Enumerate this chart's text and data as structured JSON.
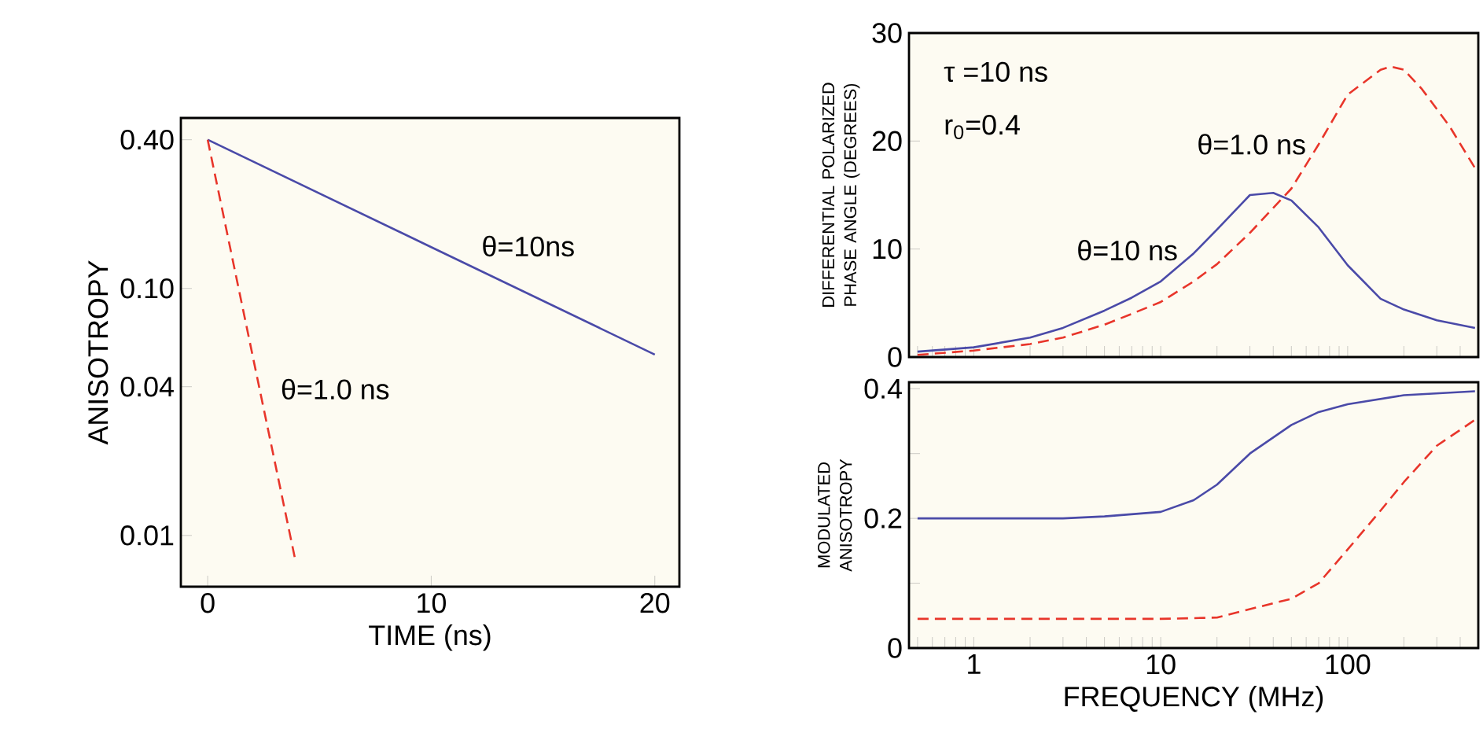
{
  "chart_data": [
    {
      "type": "line",
      "xlabel": "TIME (ns)",
      "ylabel": "ANISOTROPY",
      "log": "y",
      "xlim": [
        -1.2,
        21.1
      ],
      "ylim": [
        0.0062,
        0.49
      ],
      "xticks": [
        0,
        10,
        20
      ],
      "yticks": [
        {
          "value": 0.4,
          "label": "0.40"
        },
        {
          "value": 0.1,
          "label": "0.10"
        },
        0.04,
        0.01
      ],
      "series": [
        {
          "name": "θ=10ns",
          "color": "#4a4aa8",
          "line_style": "solid",
          "x": [
            0,
            10,
            20
          ],
          "values": [
            0.4,
            0.147,
            0.054
          ]
        },
        {
          "name": "θ=1.0 ns",
          "color": "#e8352a",
          "line_style": "dashed",
          "x": [
            0,
            2,
            3.9
          ],
          "values": [
            0.4,
            0.054,
            0.0081
          ]
        }
      ]
    },
    {
      "type": "line",
      "ylabel": "DIFFERENTIAL POLARIZED PHASE ANGLE (DEGREES)",
      "log": "x",
      "tick_labels": "y",
      "annotations": [
        "τ =10 ns",
        "r$_{0}$=0.4"
      ],
      "xlim": [
        0.45,
        500
      ],
      "ylim": [
        0,
        30
      ],
      "yticks": [
        0,
        10,
        20,
        30
      ],
      "xticks": [
        {
          "value": 0.5,
          "label": null
        },
        {
          "value": 0.6,
          "label": null
        },
        {
          "value": 0.7,
          "label": null
        },
        {
          "value": 0.8,
          "label": null
        },
        {
          "value": 0.9,
          "label": null
        },
        1,
        {
          "value": 2,
          "label": null
        },
        {
          "value": 3,
          "label": null
        },
        {
          "value": 4,
          "label": null
        },
        {
          "value": 5,
          "label": null
        },
        {
          "value": 6,
          "label": null
        },
        {
          "value": 7,
          "label": null
        },
        {
          "value": 8,
          "label": null
        },
        {
          "value": 9,
          "label": null
        },
        10,
        {
          "value": 20,
          "label": null
        },
        {
          "value": 30,
          "label": null
        },
        {
          "value": 40,
          "label": null
        },
        {
          "value": 50,
          "label": null
        },
        {
          "value": 60,
          "label": null
        },
        {
          "value": 70,
          "label": null
        },
        {
          "value": 80,
          "label": null
        },
        {
          "value": 90,
          "label": null
        },
        100,
        {
          "value": 200,
          "label": null
        },
        {
          "value": 300,
          "label": null
        },
        {
          "value": 400,
          "label": null
        }
      ],
      "series": [
        {
          "name": "θ=10 ns",
          "color": "#4a4aa8",
          "line_style": "solid",
          "x": [
            0.5,
            1,
            2,
            3,
            5,
            7,
            10,
            15,
            20,
            30,
            40,
            50,
            70,
            100,
            150,
            200,
            300,
            480
          ],
          "values": [
            0.5,
            0.9,
            1.8,
            2.7,
            4.3,
            5.5,
            7,
            9.6,
            11.8,
            15,
            15.2,
            14.5,
            12,
            8.5,
            5.4,
            4.4,
            3.4,
            2.7
          ]
        },
        {
          "name": "θ=1.0 ns",
          "color": "#e8352a",
          "line_style": "dashed",
          "x": [
            0.5,
            1,
            2,
            3,
            5,
            7,
            10,
            15,
            20,
            30,
            50,
            70,
            100,
            150,
            170,
            200,
            250,
            350,
            480
          ],
          "values": [
            0.2,
            0.6,
            1.2,
            1.8,
            3,
            4,
            5.1,
            7,
            8.6,
            11.5,
            15.6,
            19.7,
            24.3,
            26.6,
            26.9,
            26.6,
            24.8,
            21.4,
            17.5
          ]
        }
      ]
    },
    {
      "type": "line",
      "xlabel": "FREQUENCY (MHz)",
      "ylabel": "MODULATED ANISOTROPY",
      "log": "x",
      "xlim": [
        0.45,
        500
      ],
      "ylim": [
        0,
        0.41
      ],
      "yticks": [
        0,
        {
          "value": 0.1,
          "label": null
        },
        0.2,
        {
          "value": 0.3,
          "label": null
        },
        0.4
      ],
      "xticks": [
        {
          "value": 0.5,
          "label": null
        },
        {
          "value": 0.6,
          "label": null
        },
        {
          "value": 0.7,
          "label": null
        },
        {
          "value": 0.8,
          "label": null
        },
        {
          "value": 0.9,
          "label": null
        },
        1,
        {
          "value": 2,
          "label": null
        },
        {
          "value": 3,
          "label": null
        },
        {
          "value": 4,
          "label": null
        },
        {
          "value": 5,
          "label": null
        },
        {
          "value": 6,
          "label": null
        },
        {
          "value": 7,
          "label": null
        },
        {
          "value": 8,
          "label": null
        },
        {
          "value": 9,
          "label": null
        },
        10,
        {
          "value": 20,
          "label": null
        },
        {
          "value": 30,
          "label": null
        },
        {
          "value": 40,
          "label": null
        },
        {
          "value": 50,
          "label": null
        },
        {
          "value": 60,
          "label": null
        },
        {
          "value": 70,
          "label": null
        },
        {
          "value": 80,
          "label": null
        },
        {
          "value": 90,
          "label": null
        },
        100,
        {
          "value": 200,
          "label": null
        },
        {
          "value": 300,
          "label": null
        },
        {
          "value": 400,
          "label": null
        }
      ],
      "series": [
        {
          "color": "#4a4aa8",
          "line_style": "solid",
          "x": [
            0.5,
            1,
            3,
            5,
            10,
            15,
            20,
            30,
            50,
            70,
            100,
            200,
            480
          ],
          "values": [
            0.2,
            0.2,
            0.2,
            0.203,
            0.21,
            0.228,
            0.252,
            0.3,
            0.344,
            0.364,
            0.376,
            0.39,
            0.396
          ]
        },
        {
          "color": "#e8352a",
          "line_style": "dashed",
          "x": [
            0.5,
            1,
            5,
            10,
            20,
            30,
            50,
            70,
            100,
            150,
            200,
            300,
            480
          ],
          "values": [
            0.045,
            0.045,
            0.045,
            0.045,
            0.047,
            0.06,
            0.076,
            0.1,
            0.152,
            0.212,
            0.256,
            0.312,
            0.352
          ]
        }
      ]
    }
  ]
}
